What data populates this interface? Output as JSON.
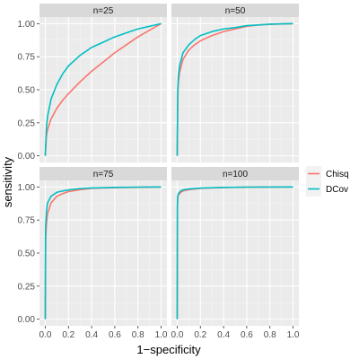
{
  "chart_data": {
    "type": "line",
    "facet_layout": "2x2",
    "xlabel": "1−specificity",
    "ylabel": "sensitivity",
    "xlim": [
      0,
      1
    ],
    "ylim": [
      0,
      1
    ],
    "x_ticks": [
      "0.0",
      "0.2",
      "0.4",
      "0.6",
      "0.8",
      "1.0"
    ],
    "y_ticks": [
      "0.00",
      "0.25",
      "0.50",
      "0.75",
      "1.00"
    ],
    "grid": true,
    "legend_position": "right",
    "series_styles": [
      {
        "name": "Chisq",
        "color": "#F8766D"
      },
      {
        "name": "DCov",
        "color": "#00BFC4"
      }
    ],
    "panels": [
      {
        "title": "n=25",
        "series": [
          {
            "name": "Chisq",
            "points": [
              [
                0,
                0
              ],
              [
                0.01,
                0.15
              ],
              [
                0.02,
                0.2
              ],
              [
                0.05,
                0.28
              ],
              [
                0.1,
                0.36
              ],
              [
                0.15,
                0.42
              ],
              [
                0.2,
                0.47
              ],
              [
                0.3,
                0.56
              ],
              [
                0.4,
                0.64
              ],
              [
                0.5,
                0.71
              ],
              [
                0.6,
                0.78
              ],
              [
                0.7,
                0.84
              ],
              [
                0.8,
                0.9
              ],
              [
                0.9,
                0.95
              ],
              [
                1,
                1
              ]
            ]
          },
          {
            "name": "DCov",
            "points": [
              [
                0,
                0
              ],
              [
                0.01,
                0.22
              ],
              [
                0.02,
                0.3
              ],
              [
                0.05,
                0.43
              ],
              [
                0.1,
                0.54
              ],
              [
                0.15,
                0.62
              ],
              [
                0.2,
                0.68
              ],
              [
                0.3,
                0.76
              ],
              [
                0.4,
                0.82
              ],
              [
                0.5,
                0.86
              ],
              [
                0.6,
                0.9
              ],
              [
                0.7,
                0.93
              ],
              [
                0.8,
                0.96
              ],
              [
                0.9,
                0.98
              ],
              [
                1,
                1
              ]
            ]
          }
        ]
      },
      {
        "title": "n=50",
        "series": [
          {
            "name": "Chisq",
            "points": [
              [
                0,
                0
              ],
              [
                0.005,
                0.45
              ],
              [
                0.01,
                0.55
              ],
              [
                0.02,
                0.63
              ],
              [
                0.05,
                0.73
              ],
              [
                0.1,
                0.8
              ],
              [
                0.15,
                0.84
              ],
              [
                0.2,
                0.87
              ],
              [
                0.3,
                0.91
              ],
              [
                0.4,
                0.94
              ],
              [
                0.5,
                0.96
              ],
              [
                0.6,
                0.98
              ],
              [
                0.7,
                0.99
              ],
              [
                0.8,
                0.995
              ],
              [
                1,
                1
              ]
            ]
          },
          {
            "name": "DCov",
            "points": [
              [
                0,
                0
              ],
              [
                0.005,
                0.5
              ],
              [
                0.01,
                0.6
              ],
              [
                0.02,
                0.68
              ],
              [
                0.05,
                0.78
              ],
              [
                0.1,
                0.84
              ],
              [
                0.15,
                0.88
              ],
              [
                0.2,
                0.91
              ],
              [
                0.3,
                0.94
              ],
              [
                0.4,
                0.96
              ],
              [
                0.5,
                0.97
              ],
              [
                0.6,
                0.985
              ],
              [
                0.7,
                0.99
              ],
              [
                0.8,
                0.996
              ],
              [
                1,
                1
              ]
            ]
          }
        ]
      },
      {
        "title": "n=75",
        "series": [
          {
            "name": "Chisq",
            "points": [
              [
                0,
                0
              ],
              [
                0.003,
                0.6
              ],
              [
                0.01,
                0.72
              ],
              [
                0.02,
                0.8
              ],
              [
                0.05,
                0.88
              ],
              [
                0.1,
                0.93
              ],
              [
                0.15,
                0.95
              ],
              [
                0.2,
                0.965
              ],
              [
                0.3,
                0.98
              ],
              [
                0.4,
                0.99
              ],
              [
                0.6,
                0.995
              ],
              [
                0.8,
                0.998
              ],
              [
                1,
                1
              ]
            ]
          },
          {
            "name": "DCov",
            "points": [
              [
                0,
                0
              ],
              [
                0.003,
                0.7
              ],
              [
                0.01,
                0.82
              ],
              [
                0.02,
                0.88
              ],
              [
                0.05,
                0.93
              ],
              [
                0.1,
                0.96
              ],
              [
                0.15,
                0.97
              ],
              [
                0.2,
                0.978
              ],
              [
                0.3,
                0.988
              ],
              [
                0.4,
                0.993
              ],
              [
                0.6,
                0.997
              ],
              [
                0.8,
                0.999
              ],
              [
                1,
                1
              ]
            ]
          }
        ]
      },
      {
        "title": "n=100",
        "series": [
          {
            "name": "Chisq",
            "points": [
              [
                0,
                0
              ],
              [
                0.002,
                0.85
              ],
              [
                0.005,
                0.92
              ],
              [
                0.01,
                0.94
              ],
              [
                0.03,
                0.96
              ],
              [
                0.05,
                0.97
              ],
              [
                0.1,
                0.98
              ],
              [
                0.2,
                0.99
              ],
              [
                0.4,
                0.996
              ],
              [
                0.6,
                0.999
              ],
              [
                1,
                1
              ]
            ]
          },
          {
            "name": "DCov",
            "points": [
              [
                0,
                0
              ],
              [
                0.002,
                0.88
              ],
              [
                0.005,
                0.93
              ],
              [
                0.01,
                0.95
              ],
              [
                0.03,
                0.97
              ],
              [
                0.05,
                0.978
              ],
              [
                0.1,
                0.985
              ],
              [
                0.2,
                0.992
              ],
              [
                0.4,
                0.997
              ],
              [
                0.6,
                0.999
              ],
              [
                1,
                1
              ]
            ]
          }
        ]
      }
    ]
  }
}
